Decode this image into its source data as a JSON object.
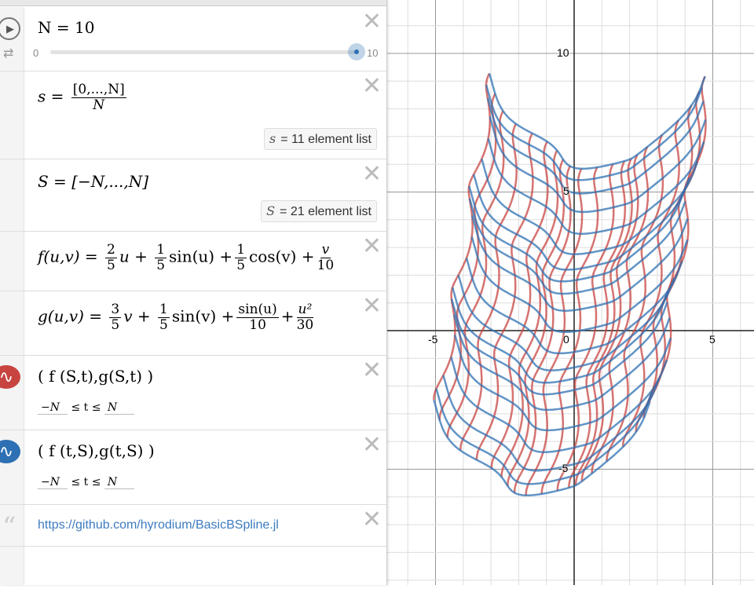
{
  "expressions": [
    {
      "type": "slider",
      "label": "N = 10",
      "var": "N",
      "value": 10,
      "min": "0",
      "max": "10"
    },
    {
      "type": "expr",
      "lhs": "s",
      "num": "[0,...,N]",
      "den": "N",
      "badge_var": "s",
      "badge_text": "11 element list"
    },
    {
      "type": "expr",
      "lhs": "S",
      "rhs": "[−N,...,N]",
      "badge_var": "S",
      "badge_text": "21 element list"
    },
    {
      "type": "expr",
      "text_f": "f(u,v) = ",
      "f_terms": [
        "2",
        "5",
        "u +",
        "1",
        "5",
        "sin(u) +",
        "1",
        "5",
        "cos(v) +",
        "v",
        "10"
      ]
    },
    {
      "type": "expr",
      "text_g": "g(u,v) = ",
      "g_terms": [
        "3",
        "5",
        "v +",
        "1",
        "5",
        "sin(v) +",
        "sin(u)",
        "10",
        "+",
        "u²",
        "30"
      ]
    },
    {
      "type": "curve",
      "latex": "( f (S,t),g(S,t) )",
      "min": "−N",
      "cond": "≤ t ≤",
      "max": "N",
      "color": "#c74440"
    },
    {
      "type": "curve",
      "latex": "( f (t,S),g(t,S) )",
      "min": "−N",
      "cond": "≤ t ≤",
      "max": "N",
      "color": "#2d70b3"
    },
    {
      "type": "note",
      "text": "https://github.com/hyrodium/BasicBSpline.jl"
    }
  ],
  "graph": {
    "x_labels": [
      "-5",
      "0",
      "5"
    ],
    "y_labels": [
      "10",
      "5",
      "-5"
    ],
    "grid": true,
    "xlim": [
      -6.8,
      6.5
    ],
    "ylim": [
      -9.2,
      11.9
    ]
  },
  "icons": {
    "play": "play-icon",
    "loop": "loop-icon",
    "close": "close-icon",
    "quote": "quote-icon"
  }
}
